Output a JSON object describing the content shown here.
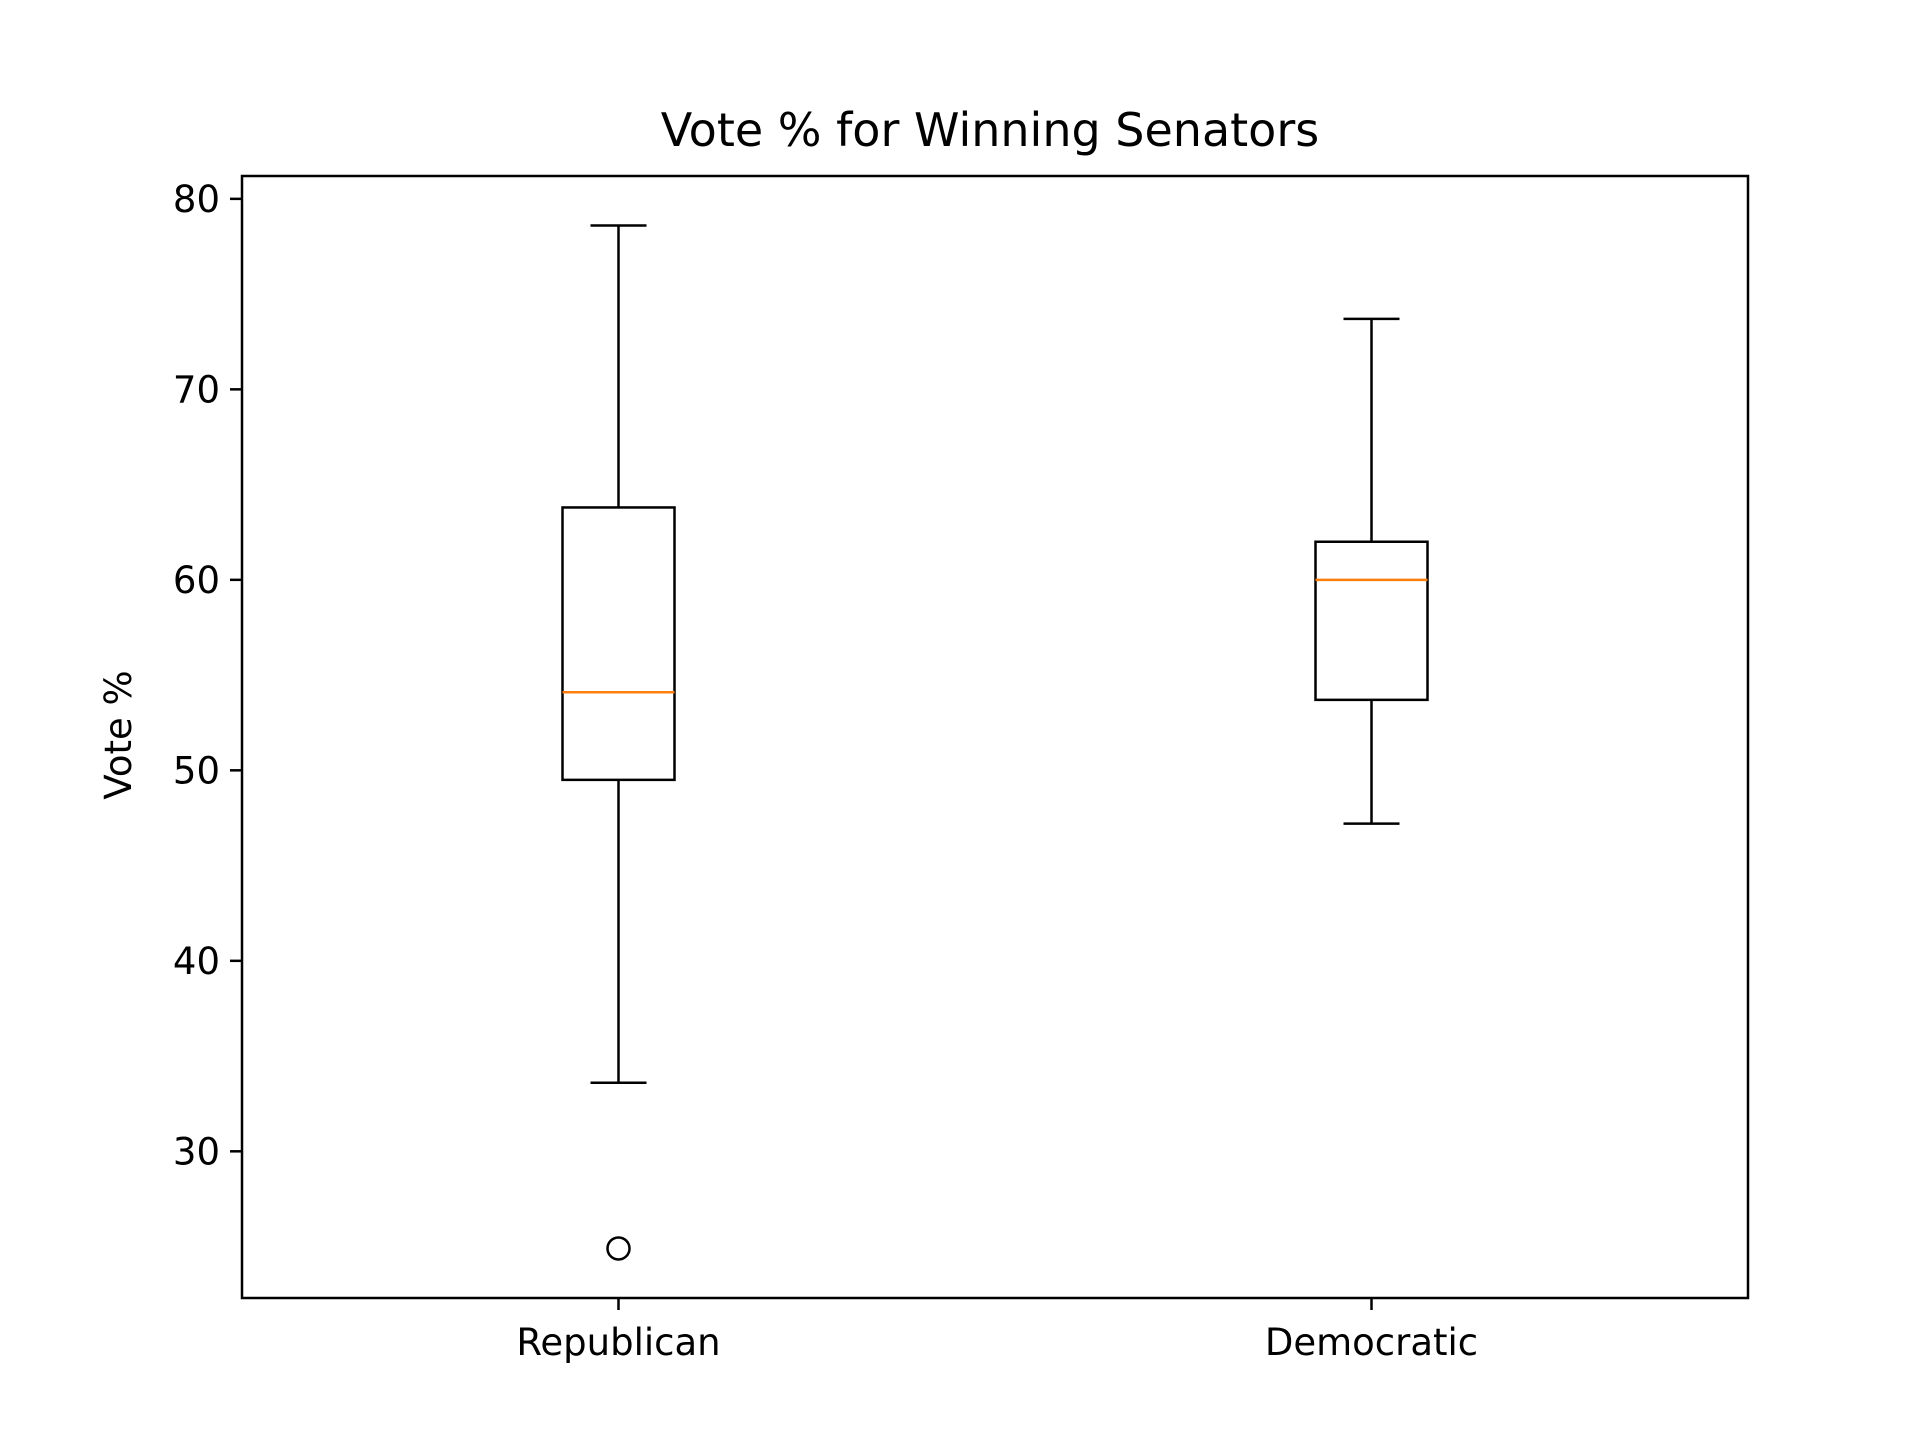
{
  "chart_data": {
    "type": "boxplot",
    "title": "Vote % for Winning Senators",
    "xlabel": "",
    "ylabel": "Vote %",
    "ylim": [
      22.3,
      81.2
    ],
    "yticks": [
      30,
      40,
      50,
      60,
      70,
      80
    ],
    "grid": false,
    "categories": [
      "Republican",
      "Democratic"
    ],
    "boxes": [
      {
        "category": "Republican",
        "whisker_low": 33.6,
        "q1": 49.5,
        "median": 54.1,
        "q3": 63.8,
        "whisker_high": 78.6,
        "outliers": [
          24.9
        ]
      },
      {
        "category": "Democratic",
        "whisker_low": 47.2,
        "q1": 53.7,
        "median": 60.0,
        "q3": 62.0,
        "whisker_high": 73.7,
        "outliers": []
      }
    ],
    "colors": {
      "box": "#000000",
      "median": "#ff7f0e",
      "outlier": "#000000"
    }
  }
}
